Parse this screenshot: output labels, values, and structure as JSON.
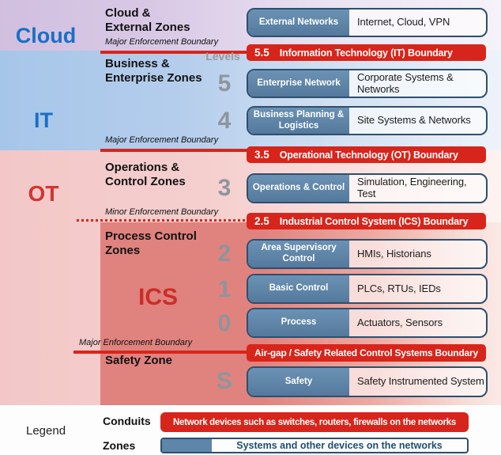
{
  "colors": {
    "conduit_red": "#d8251b",
    "zone_box_blue": "#5d86aa",
    "zone_box_border": "#2e4f6d",
    "cloud_it_label_blue": "#1a6fc4",
    "ot_ics_label_red": "#d23530",
    "level_gray": "#8e959c"
  },
  "side_labels": {
    "cloud": "Cloud",
    "it": "IT",
    "ot": "OT",
    "ics": "ICS"
  },
  "zone_titles": [
    {
      "text": "Cloud &\nExternal Zones"
    },
    {
      "text": "Business &\nEnterprise Zones"
    },
    {
      "text": "Operations &\nControl Zones"
    },
    {
      "text": "Process Control\nZones"
    },
    {
      "text": "Safety Zone"
    }
  ],
  "levels_header": "Levels",
  "levels": [
    "5",
    "4",
    "3",
    "2",
    "1",
    "0",
    "S"
  ],
  "boundaries": [
    {
      "label": "Major Enforcement Boundary",
      "type": "major"
    },
    {
      "label": "Major Enforcement Boundary",
      "type": "major"
    },
    {
      "label": "Minor Enforcement Boundary",
      "type": "minor"
    },
    {
      "label": "Major Enforcement Boundary",
      "type": "major"
    }
  ],
  "conduit_bars": [
    {
      "number": "5.5",
      "title": "Information Technology (IT) Boundary"
    },
    {
      "number": "3.5",
      "title": "Operational Technology (OT) Boundary"
    },
    {
      "number": "2.5",
      "title": "Industrial Control System (ICS) Boundary"
    },
    {
      "number": "",
      "title": "Air-gap / Safety Related Control Systems Boundary"
    }
  ],
  "zone_boxes": [
    {
      "name": "External Networks",
      "desc": "Internet, Cloud, VPN"
    },
    {
      "name": "Enterprise Network",
      "desc": "Corporate Systems & Networks"
    },
    {
      "name": "Business Planning & Logistics",
      "desc": "Site Systems & Networks"
    },
    {
      "name": "Operations & Control",
      "desc": "Simulation, Engineering, Test"
    },
    {
      "name": "Area Supervisory Control",
      "desc": "HMIs, Historians"
    },
    {
      "name": "Basic Control",
      "desc": "PLCs, RTUs, IEDs"
    },
    {
      "name": "Process",
      "desc": "Actuators, Sensors"
    },
    {
      "name": "Safety",
      "desc": "Safety Instrumented System"
    }
  ],
  "legend": {
    "title": "Legend",
    "conduits_label": "Conduits",
    "conduits_desc": "Network devices such as switches, routers, firewalls on the networks",
    "zones_label": "Zones",
    "zones_desc": "Systems and other devices on the networks"
  }
}
